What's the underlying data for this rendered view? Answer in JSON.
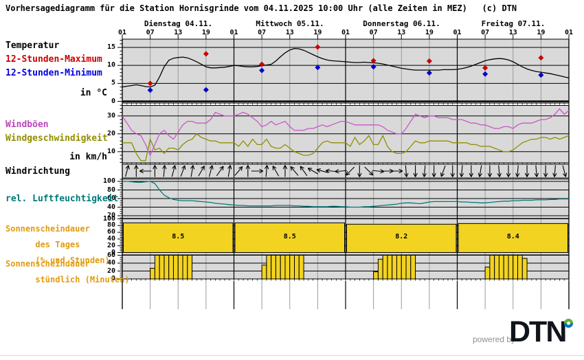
{
  "title": "Vorhersagediagramm für die Station Hornisgrinde vom 04.11.2025 10:00 Uhr (alle Zeiten in MEZ)   (c) DTN",
  "labels": {
    "temperature": "Temperatur",
    "max12": "12-Stunden-Maximum",
    "min12": "12-Stunden-Minimum",
    "temp_unit": "in °C",
    "gusts": "Windböen",
    "wind_speed": "Windgeschwindigkeit",
    "wind_unit": "in km/h",
    "wind_dir": "Windrichtung",
    "humidity": "rel. Luftfeuchtigkeit",
    "sun_day_1": "Sonnenscheindauer",
    "sun_day_2": "des Tages",
    "sun_day_3": "(% und Stunden)",
    "sun_hour_1": "Sonnenscheindauer",
    "sun_hour_2": "stündlich (Minuten)"
  },
  "footer": {
    "powered_by": "powered by",
    "brand": "DTN"
  },
  "colors": {
    "panel_bg": "#d9d9d9",
    "grid_gray": "#9a9a9a",
    "temp_line": "#000000",
    "max_marker": "#cc0000",
    "min_marker": "#0000cc",
    "gusts": "#cc55cc",
    "wind_speed": "#8f8f00",
    "humidity": "#007a7a",
    "sun_fill": "#f2d321",
    "dtn_green": "#5cb535",
    "dtn_blue": "#0b77bc"
  },
  "chart_data": {
    "type": "line",
    "station": "Hornisgrinde",
    "days": [
      "Dienstag 04.11.",
      "Mittwoch 05.11.",
      "Donnerstag 06.11.",
      "Freitag 07.11."
    ],
    "time_ticks": [
      "01",
      "07",
      "13",
      "19",
      "01",
      "07",
      "13",
      "19",
      "01",
      "07",
      "13",
      "19",
      "01",
      "07",
      "13",
      "19",
      "01"
    ],
    "hours_total": 96,
    "temperature": {
      "ylabel": "in °C",
      "ylim": [
        0,
        17
      ],
      "yticks": [
        0,
        5,
        10,
        15
      ],
      "series": [
        {
          "name": "Temperatur",
          "values": [
            4.0,
            4.2,
            4.4,
            4.6,
            4.4,
            4.1,
            4.0,
            4.5,
            6.8,
            9.6,
            11.4,
            12.0,
            12.2,
            12.3,
            12.1,
            11.6,
            11.0,
            10.3,
            9.6,
            9.3,
            9.3,
            9.4,
            9.5,
            9.7,
            10.0,
            9.9,
            9.7,
            9.6,
            9.6,
            9.7,
            9.9,
            10.1,
            10.3,
            11.2,
            12.4,
            13.5,
            14.3,
            14.7,
            14.6,
            14.2,
            13.6,
            13.0,
            12.4,
            11.9,
            11.5,
            11.3,
            11.2,
            11.1,
            11.0,
            10.9,
            10.8,
            10.8,
            10.9,
            10.8,
            10.7,
            10.6,
            10.4,
            10.1,
            9.8,
            9.5,
            9.2,
            9.0,
            8.8,
            8.7,
            8.7,
            8.7,
            8.7,
            8.7,
            8.7,
            8.8,
            8.8,
            8.8,
            8.9,
            9.1,
            9.4,
            9.8,
            10.3,
            10.8,
            11.3,
            11.6,
            11.8,
            11.9,
            11.8,
            11.5,
            11.0,
            10.3,
            9.6,
            9.0,
            8.6,
            8.3,
            8.1,
            7.9,
            7.7,
            7.4,
            7.1,
            6.8,
            6.5
          ]
        }
      ],
      "markers": [
        {
          "type": "max",
          "name": "12-Stunden-Maximum",
          "points": [
            {
              "hour": 6,
              "value": 5.0
            },
            {
              "hour": 18,
              "value": 13.2
            },
            {
              "hour": 30,
              "value": 10.3
            },
            {
              "hour": 42,
              "value": 15.1
            },
            {
              "hour": 54,
              "value": 11.3
            },
            {
              "hour": 66,
              "value": 11.2
            },
            {
              "hour": 78,
              "value": 9.3
            },
            {
              "hour": 90,
              "value": 12.1
            }
          ]
        },
        {
          "type": "min",
          "name": "12-Stunden-Minimum",
          "points": [
            {
              "hour": 6,
              "value": 3.1
            },
            {
              "hour": 18,
              "value": 3.2
            },
            {
              "hour": 30,
              "value": 8.6
            },
            {
              "hour": 42,
              "value": 9.4
            },
            {
              "hour": 54,
              "value": 9.6
            },
            {
              "hour": 66,
              "value": 7.9
            },
            {
              "hour": 78,
              "value": 7.6
            },
            {
              "hour": 90,
              "value": 7.3
            }
          ]
        }
      ]
    },
    "wind": {
      "ylabel": "in km/h",
      "ylim": [
        3,
        35
      ],
      "yticks": [
        10,
        20,
        30
      ],
      "series": [
        {
          "name": "Windböen",
          "values": [
            30,
            26,
            22,
            20,
            19,
            14,
            8,
            14,
            20,
            22,
            19,
            17,
            21,
            25,
            27,
            27,
            26,
            26,
            26,
            28,
            32,
            31,
            30,
            30,
            30,
            31,
            32,
            31,
            29,
            27,
            24,
            25,
            27,
            25,
            26,
            27,
            24,
            22,
            22,
            22,
            23,
            23,
            24,
            25,
            24,
            25,
            26,
            27,
            27,
            26,
            25,
            25,
            25,
            25,
            25,
            25,
            24,
            22,
            21,
            20,
            20,
            23,
            27,
            31,
            30,
            29,
            30,
            30,
            29,
            29,
            29,
            28,
            28,
            28,
            27,
            26,
            26,
            25,
            25,
            24,
            23,
            23,
            24,
            24,
            23,
            25,
            26,
            26,
            26,
            27,
            28,
            28,
            29,
            31,
            34,
            31,
            33
          ]
        },
        {
          "name": "Windgeschwindigkeit",
          "values": [
            15,
            15,
            15,
            9,
            5,
            5,
            17,
            11,
            12,
            9,
            12,
            12,
            11,
            14,
            16,
            17,
            20,
            18,
            17,
            16,
            16,
            15,
            15,
            15,
            15,
            13,
            16,
            13,
            17,
            14,
            14,
            17,
            13,
            12,
            12,
            14,
            12,
            10,
            9,
            8,
            8,
            9,
            12,
            15,
            16,
            15,
            15,
            15,
            15,
            13,
            18,
            14,
            16,
            19,
            14,
            14,
            19,
            13,
            10,
            9,
            9,
            10,
            13,
            16,
            15,
            15,
            16,
            16,
            16,
            16,
            16,
            15,
            15,
            15,
            15,
            14,
            14,
            13,
            13,
            13,
            12,
            11,
            10,
            10,
            11,
            13,
            15,
            16,
            17,
            17,
            18,
            18,
            17,
            18,
            17,
            18,
            19
          ]
        }
      ]
    },
    "wind_direction": {
      "name": "Windrichtung",
      "arrow_every_hours": 2,
      "first_arrow_hour": 1,
      "angles_deg_pointing": [
        15,
        0,
        270,
        0,
        5,
        15,
        20,
        10,
        30,
        15,
        35,
        10,
        40,
        0,
        90,
        5,
        330,
        0,
        320,
        325,
        300,
        285,
        275,
        265,
        225,
        180,
        135,
        95,
        90,
        90,
        175,
        180,
        185,
        180,
        200,
        180,
        185,
        180,
        190,
        180,
        175,
        180,
        185,
        180,
        175,
        180,
        185,
        165
      ]
    },
    "humidity": {
      "ylabel": "%",
      "ylim": [
        15,
        105
      ],
      "yticks": [
        20,
        40,
        60,
        80,
        100
      ],
      "series": [
        {
          "name": "rel. Luftfeuchtigkeit",
          "values": [
            100,
            100,
            99,
            98,
            98,
            99,
            100,
            95,
            80,
            68,
            62,
            58,
            56,
            55,
            55,
            55,
            54,
            53,
            52,
            51,
            49,
            48,
            47,
            46,
            45,
            44,
            44,
            43,
            43,
            43,
            43,
            43,
            43,
            44,
            44,
            44,
            44,
            43,
            43,
            42,
            42,
            41,
            41,
            41,
            41,
            42,
            42,
            41,
            41,
            40,
            40,
            40,
            41,
            41,
            42,
            43,
            44,
            45,
            46,
            47,
            49,
            50,
            50,
            49,
            48,
            50,
            52,
            53,
            53,
            53,
            53,
            53,
            53,
            52,
            52,
            51,
            51,
            50,
            50,
            51,
            52,
            53,
            54,
            54,
            55,
            55,
            56,
            56,
            56,
            57,
            57,
            57,
            58,
            58,
            59,
            59,
            59
          ]
        }
      ]
    },
    "sunshine_daily": {
      "type": "bar",
      "name": "Sonnenscheindauer des Tages",
      "ylim": [
        0,
        105
      ],
      "yticks": [
        0,
        20,
        40,
        60,
        80,
        100
      ],
      "categories": [
        "Dienstag 04.11.",
        "Mittwoch 05.11.",
        "Donnerstag 06.11.",
        "Freitag 07.11."
      ],
      "values_percent": [
        88,
        88,
        84,
        86
      ],
      "labels_hours": [
        "8.5",
        "8.5",
        "8.2",
        "8.4"
      ]
    },
    "sunshine_hourly": {
      "type": "bar",
      "name": "Sonnenscheindauer stündlich",
      "ylim": [
        0,
        60
      ],
      "yticks": [
        0,
        20,
        40,
        60
      ],
      "bars": [
        {
          "hour": 6,
          "minutes": 27
        },
        {
          "hour": 7,
          "minutes": 60
        },
        {
          "hour": 8,
          "minutes": 60
        },
        {
          "hour": 9,
          "minutes": 60
        },
        {
          "hour": 10,
          "minutes": 60
        },
        {
          "hour": 11,
          "minutes": 60
        },
        {
          "hour": 12,
          "minutes": 60
        },
        {
          "hour": 13,
          "minutes": 60
        },
        {
          "hour": 14,
          "minutes": 60
        },
        {
          "hour": 30,
          "minutes": 35
        },
        {
          "hour": 31,
          "minutes": 60
        },
        {
          "hour": 32,
          "minutes": 60
        },
        {
          "hour": 33,
          "minutes": 60
        },
        {
          "hour": 34,
          "minutes": 60
        },
        {
          "hour": 35,
          "minutes": 60
        },
        {
          "hour": 36,
          "minutes": 60
        },
        {
          "hour": 37,
          "minutes": 60
        },
        {
          "hour": 38,
          "minutes": 60
        },
        {
          "hour": 54,
          "minutes": 18
        },
        {
          "hour": 55,
          "minutes": 50
        },
        {
          "hour": 56,
          "minutes": 60
        },
        {
          "hour": 57,
          "minutes": 60
        },
        {
          "hour": 58,
          "minutes": 60
        },
        {
          "hour": 59,
          "minutes": 60
        },
        {
          "hour": 60,
          "minutes": 60
        },
        {
          "hour": 61,
          "minutes": 60
        },
        {
          "hour": 62,
          "minutes": 60
        },
        {
          "hour": 78,
          "minutes": 30
        },
        {
          "hour": 79,
          "minutes": 60
        },
        {
          "hour": 80,
          "minutes": 60
        },
        {
          "hour": 81,
          "minutes": 60
        },
        {
          "hour": 82,
          "minutes": 60
        },
        {
          "hour": 83,
          "minutes": 60
        },
        {
          "hour": 84,
          "minutes": 60
        },
        {
          "hour": 85,
          "minutes": 60
        },
        {
          "hour": 86,
          "minutes": 52
        }
      ]
    }
  }
}
